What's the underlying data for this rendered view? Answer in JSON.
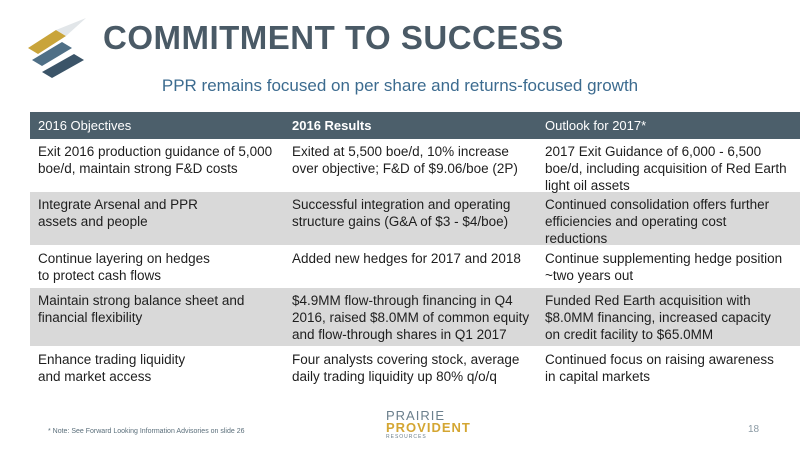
{
  "header": {
    "title": "COMMITMENT TO SUCCESS",
    "subtitle": "PPR remains focused on per share and returns-focused growth"
  },
  "table": {
    "columns": [
      "2016 Objectives",
      "2016 Results",
      "Outlook for 2017*"
    ],
    "rows": [
      {
        "objective": [
          "Exit 2016 production guidance of 5,000",
          "boe/d, maintain strong F&D costs"
        ],
        "result": [
          "Exited at 5,500 boe/d, 10% increase",
          "over objective; F&D of $9.06/boe (2P)"
        ],
        "outlook": [
          "2017 Exit Guidance of 6,000 - 6,500",
          "boe/d, including acquisition of Red Earth",
          "light oil assets"
        ]
      },
      {
        "objective": [
          "Integrate Arsenal and PPR",
          "assets and people"
        ],
        "result": [
          "Successful integration and operating",
          "structure gains (G&A of $3 - $4/boe)"
        ],
        "outlook": [
          "Continued consolidation offers further",
          "efficiencies and operating cost",
          "reductions"
        ]
      },
      {
        "objective": [
          "Continue layering on hedges",
          "to protect cash flows"
        ],
        "result": [
          "Added new hedges for 2017 and 2018"
        ],
        "outlook": [
          "Continue supplementing hedge position",
          "~two years out"
        ]
      },
      {
        "objective": [
          "Maintain strong balance sheet and",
          "financial flexibility"
        ],
        "result": [
          "$4.9MM flow-through financing in Q4",
          "2016, raised $8.0MM of common equity",
          "and flow-through shares in Q1 2017"
        ],
        "outlook": [
          "Funded Red Earth acquisition with",
          "$8.0MM financing, increased capacity",
          "on credit facility to $65.0MM"
        ]
      },
      {
        "objective": [
          "Enhance trading liquidity",
          "and market access"
        ],
        "result": [
          "Four analysts covering stock, average",
          "daily trading liquidity up 80% q/o/q"
        ],
        "outlook": [
          "Continued focus on raising awareness",
          "in capital markets"
        ]
      }
    ]
  },
  "footer": {
    "note": "* Note: See Forward Looking Information Advisories on slide 26",
    "brand_line1": "PRAIRIE",
    "brand_line2": "PROVIDENT",
    "brand_line3": "RESOURCES",
    "page_number": "18"
  },
  "colors": {
    "title": "#4a5a66",
    "subtitle": "#3c6b8f",
    "header_bg": "#4c5f6b",
    "alt_row_bg": "#d9d9d9",
    "brand_gold": "#d4a632"
  }
}
